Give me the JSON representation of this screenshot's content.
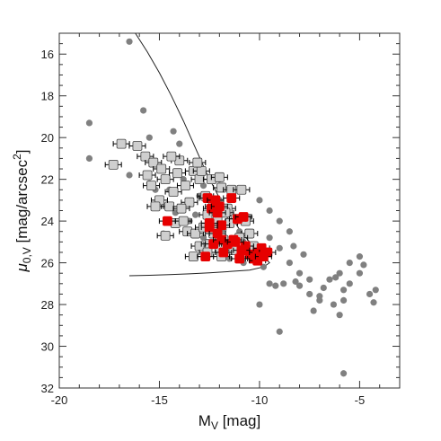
{
  "chart_data": {
    "type": "scatter",
    "title": "",
    "xlabel": "M",
    "xlabel_sub": "V",
    "xlabel_unit": " [mag]",
    "ylabel": "μ",
    "ylabel_sub": "0,V",
    "ylabel_unit": " [mag/arcsec",
    "ylabel_sup": "2",
    "ylabel_close": "]",
    "xlim": [
      -20,
      -3
    ],
    "ylim": [
      32,
      15
    ],
    "x_ticks": [
      -20,
      -15,
      -10,
      -5
    ],
    "y_ticks": [
      16,
      18,
      20,
      22,
      24,
      26,
      28,
      30,
      32
    ],
    "x_minor_step": 1,
    "y_minor_step": 0.5,
    "colors": {
      "background": "#ffffff",
      "axis": "#333333",
      "dots": "#808080",
      "gray_squares": "#cfcfcf",
      "gray_squares_edge": "#444444",
      "red_squares": "#e60000",
      "error_bars": "#000000",
      "curve": "#222222"
    },
    "curve": {
      "x": [
        -16.2,
        -15.6,
        -15.0,
        -14.4,
        -13.8,
        -13.2,
        -12.6,
        -12.0,
        -11.4,
        -11.0,
        -10.5,
        -10.0,
        -9.7,
        -9.5,
        -9.8,
        -10.5,
        -11.5,
        -12.5,
        -13.5,
        -14.5,
        -15.5,
        -16.5
      ],
      "y": [
        15.0,
        15.9,
        16.9,
        18.0,
        19.2,
        20.5,
        21.8,
        22.9,
        23.8,
        24.4,
        25.0,
        25.5,
        25.8,
        26.0,
        26.2,
        26.35,
        26.42,
        26.48,
        26.53,
        26.57,
        26.6,
        26.62
      ]
    },
    "series": [
      {
        "marker": "dot",
        "points": [
          [
            -16.5,
            15.4
          ],
          [
            -18.5,
            19.3
          ],
          [
            -18.5,
            21.0
          ],
          [
            -15.8,
            18.7
          ],
          [
            -14.3,
            19.7
          ],
          [
            -15.5,
            20.0
          ],
          [
            -14.0,
            20.3
          ],
          [
            -16.5,
            21.8
          ],
          [
            -15.5,
            22.2
          ],
          [
            -14.5,
            22.5
          ],
          [
            -13.8,
            22.0
          ],
          [
            -12.8,
            22.3
          ],
          [
            -12.0,
            22.0
          ],
          [
            -11.5,
            22.8
          ],
          [
            -14.8,
            24.6
          ],
          [
            -13.5,
            24.0
          ],
          [
            -12.5,
            25.2
          ],
          [
            -11.0,
            24.5
          ],
          [
            -10.5,
            23.8
          ],
          [
            -10.0,
            23.0
          ],
          [
            -9.5,
            23.5
          ],
          [
            -9.0,
            24.0
          ],
          [
            -8.5,
            24.5
          ],
          [
            -9.5,
            24.8
          ],
          [
            -10.2,
            25.5
          ],
          [
            -10.8,
            26.0
          ],
          [
            -9.8,
            26.2
          ],
          [
            -9.0,
            25.3
          ],
          [
            -8.3,
            25.2
          ],
          [
            -7.8,
            25.6
          ],
          [
            -8.5,
            26.0
          ],
          [
            -8.0,
            26.5
          ],
          [
            -7.5,
            26.8
          ],
          [
            -9.5,
            27.0
          ],
          [
            -9.2,
            27.1
          ],
          [
            -10.0,
            28.0
          ],
          [
            -8.8,
            27.0
          ],
          [
            -8.0,
            27.1
          ],
          [
            -7.5,
            27.5
          ],
          [
            -7.0,
            27.8
          ],
          [
            -6.8,
            27.2
          ],
          [
            -6.5,
            26.8
          ],
          [
            -6.0,
            26.5
          ],
          [
            -5.8,
            27.3
          ],
          [
            -5.5,
            27.0
          ],
          [
            -5.0,
            26.5
          ],
          [
            -5.5,
            26.0
          ],
          [
            -5.0,
            25.7
          ],
          [
            -4.8,
            26.1
          ],
          [
            -5.8,
            27.8
          ],
          [
            -6.3,
            28.0
          ],
          [
            -7.3,
            28.3
          ],
          [
            -7.0,
            27.6
          ],
          [
            -4.5,
            27.5
          ],
          [
            -4.2,
            27.3
          ],
          [
            -4.3,
            27.9
          ],
          [
            -6.0,
            28.5
          ],
          [
            -6.2,
            26.7
          ],
          [
            -9.0,
            29.3
          ],
          [
            -5.8,
            31.3
          ],
          [
            -11.5,
            25.8
          ],
          [
            -12.8,
            24.8
          ],
          [
            -13.2,
            23.7
          ],
          [
            -12.0,
            23.0
          ],
          [
            -10.8,
            25.0
          ],
          [
            -11.8,
            24.4
          ],
          [
            -13.0,
            22.8
          ],
          [
            -14.2,
            23.6
          ],
          [
            -15.2,
            22.5
          ],
          [
            -8.2,
            26.9
          ]
        ]
      },
      {
        "marker": "square",
        "color_key": "gray_squares",
        "points": [
          [
            -17.3,
            21.3
          ],
          [
            -16.9,
            20.3
          ],
          [
            -16.1,
            20.4
          ],
          [
            -15.7,
            20.9
          ],
          [
            -15.6,
            21.8
          ],
          [
            -15.3,
            21.2
          ],
          [
            -15.4,
            22.3
          ],
          [
            -14.9,
            21.5
          ],
          [
            -14.7,
            22.0
          ],
          [
            -14.3,
            22.6
          ],
          [
            -14.1,
            21.7
          ],
          [
            -14.0,
            21.1
          ],
          [
            -13.7,
            22.3
          ],
          [
            -13.5,
            23.1
          ],
          [
            -13.3,
            21.6
          ],
          [
            -13.0,
            22.0
          ],
          [
            -12.9,
            21.6
          ],
          [
            -12.7,
            22.8
          ],
          [
            -12.4,
            22.0
          ],
          [
            -12.3,
            23.3
          ],
          [
            -12.0,
            21.9
          ],
          [
            -11.9,
            22.4
          ],
          [
            -11.6,
            23.4
          ],
          [
            -11.4,
            22.5
          ],
          [
            -11.2,
            23.9
          ],
          [
            -10.9,
            22.5
          ],
          [
            -10.7,
            24.0
          ],
          [
            -10.5,
            24.6
          ],
          [
            -14.5,
            23.3
          ],
          [
            -14.2,
            24.1
          ],
          [
            -13.8,
            24.0
          ],
          [
            -13.6,
            24.5
          ],
          [
            -14.7,
            24.7
          ],
          [
            -13.2,
            24.6
          ],
          [
            -13.0,
            25.2
          ],
          [
            -12.8,
            24.3
          ],
          [
            -12.5,
            25.1
          ],
          [
            -12.3,
            24.6
          ],
          [
            -12.0,
            25.3
          ],
          [
            -11.8,
            24.9
          ],
          [
            -11.5,
            24.1
          ],
          [
            -11.3,
            25.4
          ],
          [
            -15.0,
            23.0
          ],
          [
            -13.9,
            23.4
          ],
          [
            -13.3,
            25.7
          ],
          [
            -12.6,
            25.5
          ],
          [
            -11.9,
            25.7
          ],
          [
            -11.0,
            24.8
          ],
          [
            -10.3,
            25.2
          ],
          [
            -12.1,
            24.0
          ],
          [
            -11.7,
            23.6
          ],
          [
            -14.4,
            20.9
          ],
          [
            -13.1,
            21.2
          ],
          [
            -15.2,
            23.3
          ],
          [
            -12.6,
            23.7
          ]
        ]
      },
      {
        "marker": "square",
        "color_key": "red_squares",
        "points": [
          [
            -12.6,
            22.9
          ],
          [
            -12.4,
            23.4
          ],
          [
            -12.2,
            23.0
          ],
          [
            -12.1,
            23.6
          ],
          [
            -11.9,
            24.2
          ],
          [
            -12.5,
            24.3
          ],
          [
            -12.3,
            25.1
          ],
          [
            -12.1,
            24.6
          ],
          [
            -11.9,
            24.9
          ],
          [
            -11.6,
            25.1
          ],
          [
            -11.3,
            24.9
          ],
          [
            -11.1,
            23.9
          ],
          [
            -11.4,
            22.9
          ],
          [
            -10.8,
            23.8
          ],
          [
            -10.7,
            25.2
          ],
          [
            -10.5,
            25.6
          ],
          [
            -10.3,
            25.8
          ],
          [
            -10.1,
            25.5
          ],
          [
            -9.9,
            25.3
          ],
          [
            -9.6,
            25.5
          ],
          [
            -14.6,
            24.0
          ],
          [
            -12.7,
            25.7
          ],
          [
            -11.0,
            25.8
          ],
          [
            -10.9,
            25.4
          ],
          [
            -12.0,
            23.3
          ],
          [
            -11.8,
            25.5
          ],
          [
            -10.1,
            25.9
          ],
          [
            -11.2,
            25.0
          ],
          [
            -9.8,
            25.7
          ],
          [
            -12.5,
            24.1
          ]
        ]
      }
    ]
  }
}
